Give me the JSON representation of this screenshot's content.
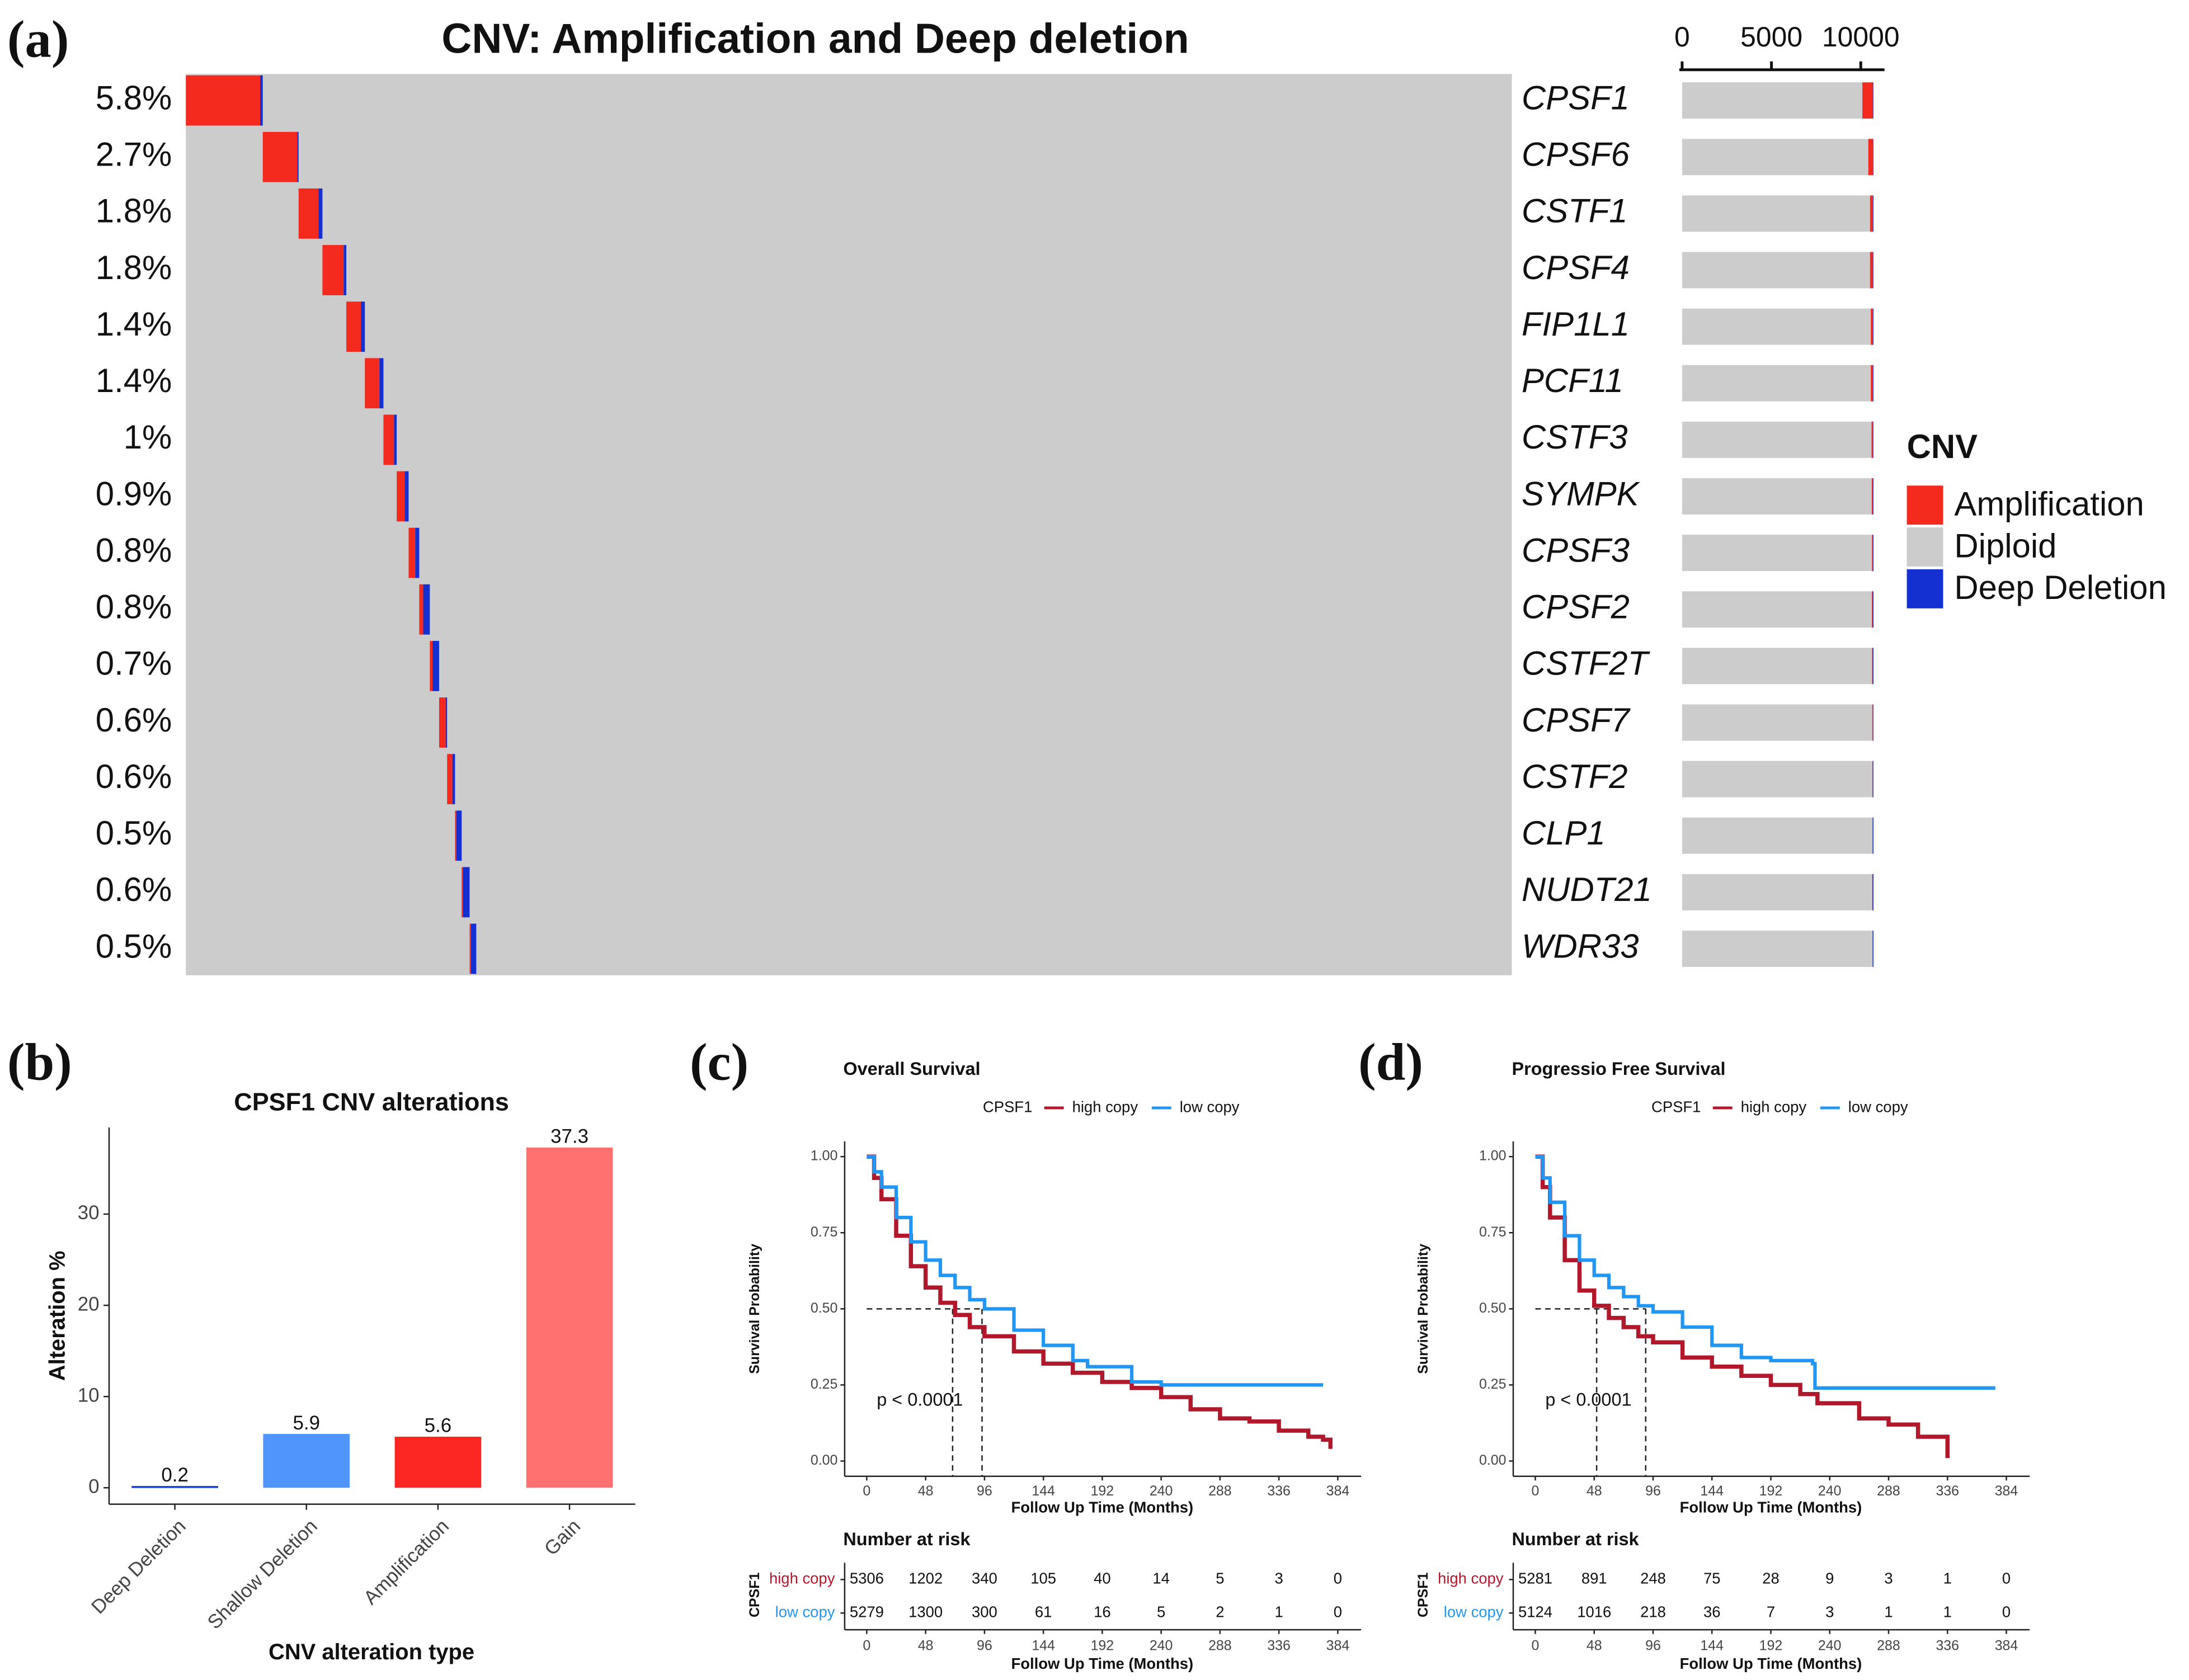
{
  "chart_data": [
    {
      "type": "oncoprint",
      "panel": "(a)",
      "title": "CNV: Amplification and Deep deletion",
      "categories": [
        "CPSF1",
        "CPSF6",
        "CSTF1",
        "CPSF4",
        "FIP1L1",
        "PCF11",
        "CSTF3",
        "SYMPK",
        "CPSF3",
        "CPSF2",
        "CSTF2T",
        "CPSF7",
        "CSTF2",
        "CLP1",
        "NUDT21",
        "WDR33"
      ],
      "altered": [
        5.8,
        2.7,
        1.8,
        1.8,
        1.4,
        1.4,
        1,
        0.9,
        0.8,
        0.8,
        0.7,
        0.6,
        0.6,
        0.5,
        0.6,
        0.5
      ],
      "altered_labels": [
        "5.8%",
        "2.7%",
        "1.8%",
        "1.8%",
        "1.4%",
        "1.4%",
        "1%",
        "0.9%",
        "0.8%",
        "0.8%",
        "0.7%",
        "0.6%",
        "0.6%",
        "0.5%",
        "0.6%",
        "0.5%"
      ],
      "legend_title": "CNV",
      "series": [
        {
          "name": "Amplification",
          "color": "#f42a1f",
          "pct": [
            5.6,
            2.6,
            1.5,
            1.6,
            1.1,
            1.1,
            0.8,
            0.6,
            0.5,
            0.3,
            0.2,
            0.5,
            0.4,
            0.1,
            0.1,
            0.1
          ],
          "counts": [
            600,
            278,
            161,
            171,
            118,
            118,
            86,
            64,
            54,
            32,
            21,
            54,
            43,
            11,
            11,
            11
          ]
        },
        {
          "name": "Diploid",
          "color": "#cccccc",
          "counts": [
            10089,
            10421,
            10517,
            10518,
            10560,
            10560,
            10603,
            10614,
            10624,
            10624,
            10635,
            10645,
            10646,
            10656,
            10645,
            10656
          ]
        },
        {
          "name": "Deep Deletion",
          "color": "#1530d0",
          "pct": [
            0.2,
            0.1,
            0.3,
            0.2,
            0.3,
            0.3,
            0.2,
            0.3,
            0.3,
            0.5,
            0.5,
            0.1,
            0.2,
            0.4,
            0.5,
            0.4
          ],
          "counts": [
            21,
            11,
            32,
            21,
            32,
            32,
            21,
            32,
            32,
            54,
            54,
            11,
            21,
            43,
            54,
            43
          ]
        }
      ],
      "xlim": [
        0,
        11000
      ],
      "xticks": [
        0,
        5000,
        10000
      ]
    },
    {
      "type": "bar",
      "panel": "(b)",
      "title": "CPSF1 CNV alterations",
      "categories": [
        "Deep Deletion",
        "Shallow Deletion",
        "Amplification",
        "Gain"
      ],
      "values": [
        0.2,
        5.9,
        5.6,
        37.3
      ],
      "colors": [
        "#2347d6",
        "#4f95fb",
        "#fc2722",
        "#ff7070"
      ],
      "ylim": [
        -1.8,
        39.5
      ],
      "yticks": [
        0,
        10,
        20,
        30
      ],
      "xlabel": "CNV alteration type",
      "ylabel": "Alteration %"
    },
    {
      "type": "km",
      "panel": "(c)",
      "title": "Overall Survival",
      "legend_title": "CPSF1",
      "series": [
        {
          "name": "high copy",
          "color": "#b2182b",
          "x": [
            0,
            6,
            12,
            24,
            36,
            48,
            60,
            72,
            84,
            96,
            120,
            144,
            168,
            192,
            216,
            240,
            264,
            288,
            312,
            336,
            360,
            372,
            378
          ],
          "values": [
            1,
            0.93,
            0.86,
            0.74,
            0.64,
            0.57,
            0.52,
            0.48,
            0.44,
            0.41,
            0.36,
            0.32,
            0.29,
            0.26,
            0.24,
            0.21,
            0.17,
            0.14,
            0.13,
            0.1,
            0.08,
            0.07,
            0.04
          ],
          "risk": [
            5306,
            1202,
            340,
            105,
            40,
            14,
            5,
            3,
            0
          ]
        },
        {
          "name": "low copy",
          "color": "#2196f3",
          "x": [
            0,
            6,
            12,
            24,
            36,
            48,
            60,
            72,
            84,
            96,
            120,
            144,
            168,
            180,
            200,
            216,
            240,
            264,
            300,
            340,
            372
          ],
          "values": [
            1,
            0.95,
            0.9,
            0.8,
            0.72,
            0.66,
            0.61,
            0.57,
            0.53,
            0.5,
            0.43,
            0.38,
            0.33,
            0.31,
            0.31,
            0.26,
            0.25,
            0.25,
            0.25,
            0.25,
            0.25
          ],
          "risk": [
            5279,
            1300,
            300,
            61,
            16,
            5,
            2,
            1,
            0
          ]
        }
      ],
      "medians": [
        70,
        94
      ],
      "annotation": "p < 0.0001",
      "xlabel": "Follow Up Time (Months)",
      "ylabel": "Survival Probability",
      "risk_title": "Number at risk",
      "xlim": [
        -18,
        403
      ],
      "xticks": [
        0,
        48,
        96,
        144,
        192,
        240,
        288,
        336,
        384
      ],
      "ylim": [
        -0.05,
        1.05
      ],
      "yticks": [
        {
          "value": 0,
          "label": "0.00"
        },
        {
          "value": 0.25,
          "label": "0.25"
        },
        {
          "value": 0.5,
          "label": "0.50"
        },
        {
          "value": 0.75,
          "label": "0.75"
        },
        {
          "value": 1,
          "label": "1.00"
        }
      ]
    },
    {
      "type": "km",
      "panel": "(d)",
      "title": "Progressio Free Survival",
      "legend_title": "CPSF1",
      "series": [
        {
          "name": "high copy",
          "color": "#b2182b",
          "x": [
            0,
            6,
            12,
            24,
            36,
            48,
            60,
            72,
            84,
            96,
            120,
            144,
            168,
            192,
            216,
            230,
            264,
            288,
            312,
            336
          ],
          "values": [
            1,
            0.9,
            0.8,
            0.66,
            0.56,
            0.51,
            0.47,
            0.44,
            0.41,
            0.39,
            0.34,
            0.31,
            0.28,
            0.25,
            0.22,
            0.19,
            0.14,
            0.12,
            0.08,
            0.01
          ],
          "risk": [
            5281,
            891,
            248,
            75,
            28,
            9,
            3,
            1,
            0
          ]
        },
        {
          "name": "low copy",
          "color": "#2196f3",
          "x": [
            0,
            6,
            12,
            24,
            36,
            48,
            60,
            72,
            84,
            96,
            120,
            144,
            168,
            192,
            226,
            228,
            264,
            300,
            340,
            375
          ],
          "values": [
            1,
            0.93,
            0.85,
            0.74,
            0.66,
            0.61,
            0.57,
            0.54,
            0.51,
            0.49,
            0.44,
            0.38,
            0.34,
            0.33,
            0.32,
            0.24,
            0.24,
            0.24,
            0.24,
            0.24
          ],
          "risk": [
            5124,
            1016,
            218,
            36,
            7,
            3,
            1,
            1,
            0
          ]
        }
      ],
      "medians": [
        50,
        90
      ],
      "annotation": "p < 0.0001",
      "xlabel": "Follow Up Time (Months)",
      "ylabel": "Survival Probability",
      "risk_title": "Number at risk",
      "xlim": [
        -18,
        403
      ],
      "xticks": [
        0,
        48,
        96,
        144,
        192,
        240,
        288,
        336,
        384
      ],
      "ylim": [
        -0.05,
        1.05
      ],
      "yticks": [
        {
          "value": 0,
          "label": "0.00"
        },
        {
          "value": 0.25,
          "label": "0.25"
        },
        {
          "value": 0.5,
          "label": "0.50"
        },
        {
          "value": 0.75,
          "label": "0.75"
        },
        {
          "value": 1,
          "label": "1.00"
        }
      ]
    }
  ]
}
